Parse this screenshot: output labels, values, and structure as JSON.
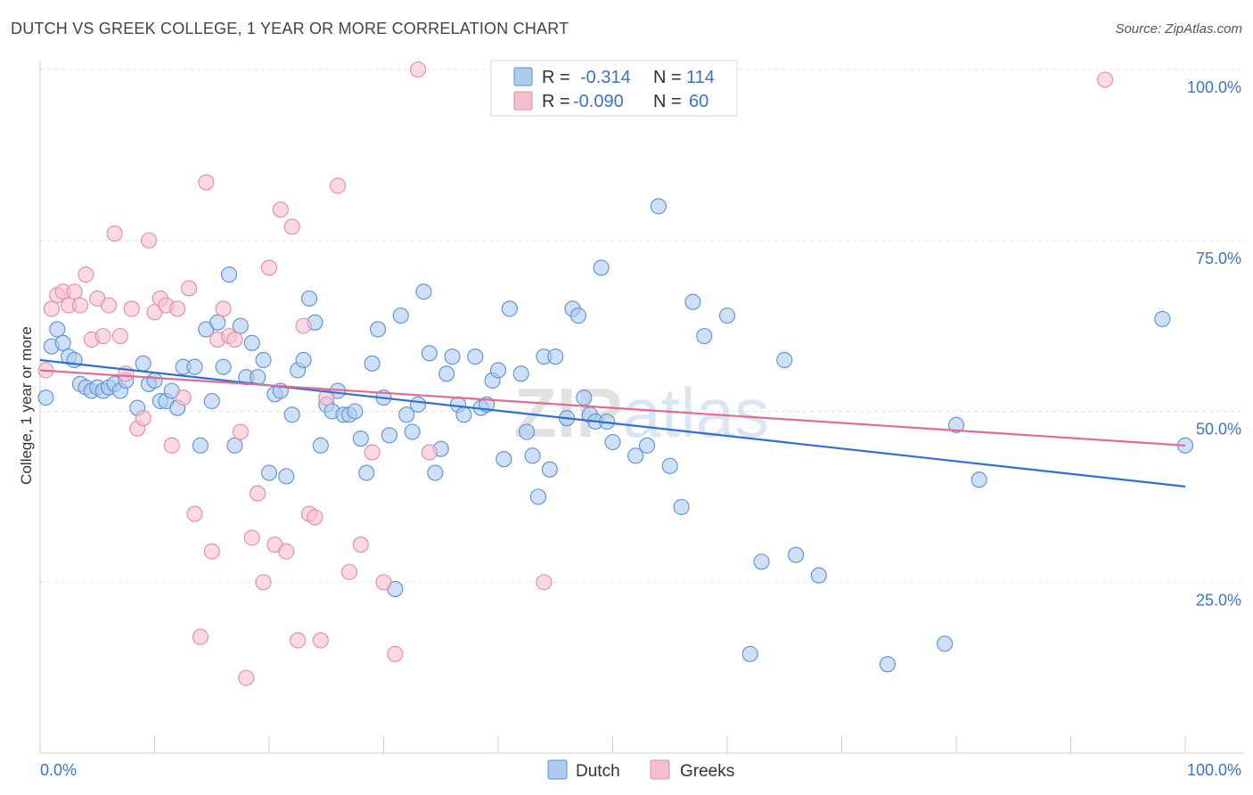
{
  "title": "DUTCH VS GREEK COLLEGE, 1 YEAR OR MORE CORRELATION CHART",
  "source": "Source: ZipAtlas.com",
  "watermark": "ZIPatlas",
  "colors": {
    "dutch_fill": "#aecbf0",
    "dutch_stroke": "#5b8fd6",
    "dutch_line": "#2f6fd0",
    "greek_fill": "#f6bfd0",
    "greek_stroke": "#e48aa8",
    "greek_line": "#e06b95",
    "axis_label": "#3a74c4"
  },
  "legend": {
    "r_label": "R =",
    "n_label": "N =",
    "dutch_r": "-0.314",
    "dutch_n": "114",
    "greek_r": "-0.090",
    "greek_n": "60"
  },
  "chart_data": {
    "type": "scatter",
    "title": "DUTCH VS GREEK COLLEGE, 1 YEAR OR MORE CORRELATION CHART",
    "xlabel": "",
    "ylabel": "College, 1 year or more",
    "xlim": [
      0,
      100
    ],
    "ylim": [
      0,
      100
    ],
    "x_tick_labels": [
      "0.0%",
      "100.0%"
    ],
    "y_ticks": [
      25,
      50,
      75,
      100
    ],
    "y_tick_labels": [
      "25.0%",
      "50.0%",
      "75.0%",
      "100.0%"
    ],
    "grid": true,
    "legend_position": "top-center",
    "series": [
      {
        "name": "Dutch",
        "trend": {
          "x": [
            0,
            100
          ],
          "y": [
            57.5,
            39.0
          ]
        },
        "points": [
          [
            0.5,
            52
          ],
          [
            1,
            59.5
          ],
          [
            1.5,
            62
          ],
          [
            2,
            60
          ],
          [
            2.5,
            58
          ],
          [
            3,
            57.5
          ],
          [
            3.5,
            54
          ],
          [
            4,
            53.5
          ],
          [
            4.5,
            53
          ],
          [
            5,
            53.5
          ],
          [
            5.5,
            53
          ],
          [
            6,
            53.5
          ],
          [
            6.5,
            54
          ],
          [
            7,
            53
          ],
          [
            7.5,
            54.5
          ],
          [
            8.5,
            50.5
          ],
          [
            9,
            57
          ],
          [
            9.5,
            54
          ],
          [
            10,
            54.5
          ],
          [
            10.5,
            51.5
          ],
          [
            11,
            51.5
          ],
          [
            11.5,
            53
          ],
          [
            12,
            50.5
          ],
          [
            12.5,
            56.5
          ],
          [
            13.5,
            56.5
          ],
          [
            14,
            45
          ],
          [
            14.5,
            62
          ],
          [
            15,
            51.5
          ],
          [
            15.5,
            63
          ],
          [
            16,
            56.5
          ],
          [
            16.5,
            70
          ],
          [
            17,
            45
          ],
          [
            17.5,
            62.5
          ],
          [
            18,
            55
          ],
          [
            18.5,
            60
          ],
          [
            19,
            55
          ],
          [
            19.5,
            57.5
          ],
          [
            20,
            41
          ],
          [
            20.5,
            52.5
          ],
          [
            21,
            53
          ],
          [
            21.5,
            40.5
          ],
          [
            22,
            49.5
          ],
          [
            22.5,
            56
          ],
          [
            23,
            57.5
          ],
          [
            23.5,
            66.5
          ],
          [
            24,
            63
          ],
          [
            24.5,
            45
          ],
          [
            25,
            51
          ],
          [
            25.5,
            50
          ],
          [
            26,
            53
          ],
          [
            26.5,
            49.5
          ],
          [
            27,
            49.5
          ],
          [
            27.5,
            50
          ],
          [
            28,
            46
          ],
          [
            28.5,
            41
          ],
          [
            29,
            57
          ],
          [
            29.5,
            62
          ],
          [
            30,
            52
          ],
          [
            30.5,
            46.5
          ],
          [
            31,
            24
          ],
          [
            31.5,
            64
          ],
          [
            32,
            49.5
          ],
          [
            32.5,
            47
          ],
          [
            33,
            51
          ],
          [
            33.5,
            67.5
          ],
          [
            34,
            58.5
          ],
          [
            34.5,
            41
          ],
          [
            35,
            44.5
          ],
          [
            35.5,
            55.5
          ],
          [
            36,
            58
          ],
          [
            36.5,
            51
          ],
          [
            37,
            49.5
          ],
          [
            38,
            58
          ],
          [
            38.5,
            50.5
          ],
          [
            39,
            51
          ],
          [
            39.5,
            54.5
          ],
          [
            40,
            56
          ],
          [
            40.5,
            43
          ],
          [
            41,
            65
          ],
          [
            42,
            55.5
          ],
          [
            42.5,
            47
          ],
          [
            43,
            43.5
          ],
          [
            43.5,
            37.5
          ],
          [
            44,
            58
          ],
          [
            44.5,
            41.5
          ],
          [
            45,
            58
          ],
          [
            46,
            49
          ],
          [
            46.5,
            65
          ],
          [
            47,
            64
          ],
          [
            47.5,
            52
          ],
          [
            48,
            49.5
          ],
          [
            48.5,
            48.5
          ],
          [
            49,
            71
          ],
          [
            49.5,
            48.5
          ],
          [
            50,
            45.5
          ],
          [
            52,
            43.5
          ],
          [
            53,
            45
          ],
          [
            54,
            80
          ],
          [
            55,
            42
          ],
          [
            56,
            36
          ],
          [
            57,
            66
          ],
          [
            58,
            61
          ],
          [
            60,
            64
          ],
          [
            62,
            14.5
          ],
          [
            63,
            28
          ],
          [
            65,
            57.5
          ],
          [
            66,
            29
          ],
          [
            68,
            26
          ],
          [
            74,
            13
          ],
          [
            79,
            16
          ],
          [
            80,
            48
          ],
          [
            82,
            40
          ],
          [
            98,
            63.5
          ],
          [
            100,
            45
          ]
        ]
      },
      {
        "name": "Greeks",
        "trend": {
          "x": [
            0,
            100
          ],
          "y": [
            56.0,
            45.0
          ]
        },
        "points": [
          [
            0.5,
            56
          ],
          [
            1,
            65
          ],
          [
            1.5,
            67
          ],
          [
            2,
            67.5
          ],
          [
            2.5,
            65.5
          ],
          [
            3,
            67.5
          ],
          [
            3.5,
            65.5
          ],
          [
            4,
            70
          ],
          [
            4.5,
            60.5
          ],
          [
            5,
            66.5
          ],
          [
            5.5,
            61
          ],
          [
            6,
            65.5
          ],
          [
            6.5,
            76
          ],
          [
            7,
            61
          ],
          [
            7.5,
            55.5
          ],
          [
            8,
            65
          ],
          [
            8.5,
            47.5
          ],
          [
            9,
            49
          ],
          [
            9.5,
            75
          ],
          [
            10,
            64.5
          ],
          [
            10.5,
            66.5
          ],
          [
            11,
            65.5
          ],
          [
            11.5,
            45
          ],
          [
            12,
            65
          ],
          [
            12.5,
            52
          ],
          [
            13,
            68
          ],
          [
            13.5,
            35
          ],
          [
            14,
            17
          ],
          [
            14.5,
            83.5
          ],
          [
            15,
            29.5
          ],
          [
            15.5,
            60.5
          ],
          [
            16,
            65
          ],
          [
            16.5,
            61
          ],
          [
            17,
            60.5
          ],
          [
            17.5,
            47
          ],
          [
            18,
            11
          ],
          [
            18.5,
            31.5
          ],
          [
            19,
            38
          ],
          [
            19.5,
            25
          ],
          [
            20,
            71
          ],
          [
            20.5,
            30.5
          ],
          [
            21,
            79.5
          ],
          [
            21.5,
            29.5
          ],
          [
            22,
            77
          ],
          [
            22.5,
            16.5
          ],
          [
            23,
            62.5
          ],
          [
            23.5,
            35
          ],
          [
            24,
            34.5
          ],
          [
            24.5,
            16.5
          ],
          [
            25,
            52
          ],
          [
            26,
            83
          ],
          [
            27,
            26.5
          ],
          [
            28,
            30.5
          ],
          [
            29,
            44
          ],
          [
            30,
            25
          ],
          [
            31,
            14.5
          ],
          [
            33,
            100
          ],
          [
            34,
            44
          ],
          [
            44,
            25
          ],
          [
            93,
            98.5
          ]
        ]
      }
    ]
  }
}
